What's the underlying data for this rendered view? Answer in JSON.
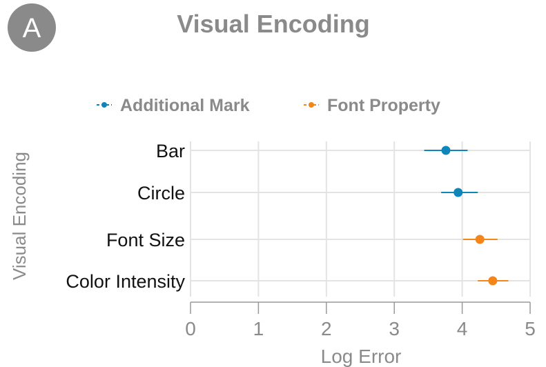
{
  "panel_label": "A",
  "chart_data": {
    "type": "dot-errorbar",
    "title": "Visual Encoding",
    "xlabel": "Log Error",
    "ylabel": "Visual Encoding",
    "xlim": [
      0,
      5
    ],
    "xticks": [
      0,
      1,
      2,
      3,
      4,
      5
    ],
    "grid": "vertical and horizontal",
    "legend_position": "top",
    "series": [
      {
        "name": "Additional Mark",
        "color": "#0f86b9"
      },
      {
        "name": "Font Property",
        "color": "#f48518"
      }
    ],
    "categories": [
      "Bar",
      "Circle",
      "Font Size",
      "Color Intensity"
    ],
    "points": [
      {
        "category": "Bar",
        "series": "Additional Mark",
        "value": 3.76,
        "low": 3.44,
        "high": 4.08
      },
      {
        "category": "Circle",
        "series": "Additional Mark",
        "value": 3.94,
        "low": 3.69,
        "high": 4.23
      },
      {
        "category": "Font Size",
        "series": "Font Property",
        "value": 4.26,
        "low": 4.01,
        "high": 4.52
      },
      {
        "category": "Color Intensity",
        "series": "Font Property",
        "value": 4.45,
        "low": 4.23,
        "high": 4.68
      }
    ]
  }
}
